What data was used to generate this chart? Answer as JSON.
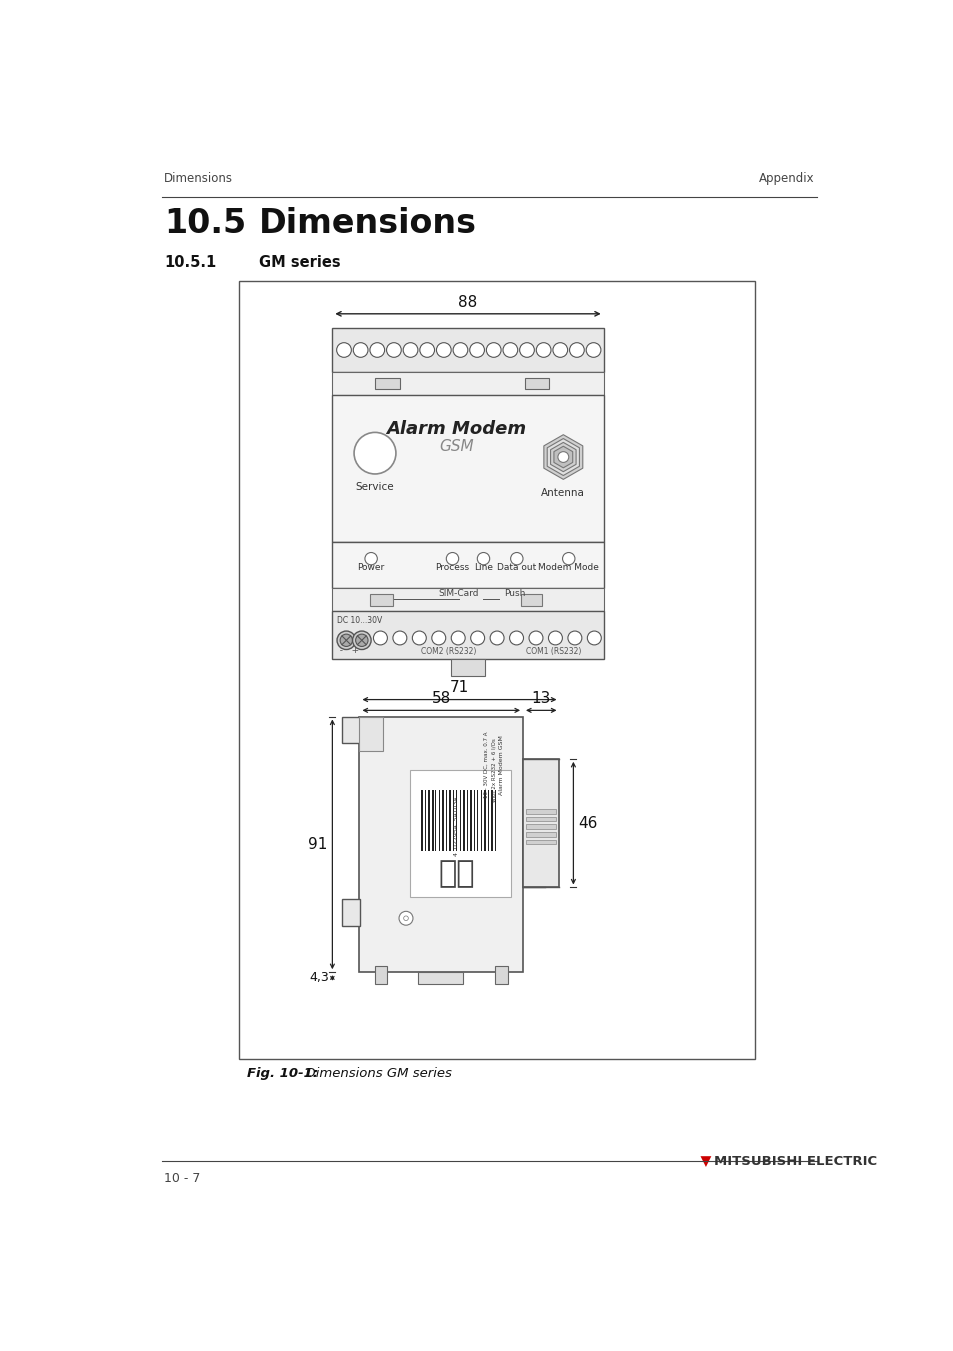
{
  "page_title_section": "10.5",
  "page_title": "Dimensions",
  "page_subtitle_section": "10.5.1",
  "page_subtitle": "GM series",
  "header_left": "Dimensions",
  "header_right": "Appendix",
  "footer_left": "10 - 7",
  "footer_right": "MITSUBISHI ELECTRIC",
  "figure_caption": "Fig. 10-1:",
  "figure_caption_text": "  Dimensions GM series",
  "bg_color": "#ffffff",
  "dim_88": "88",
  "dim_71": "71",
  "dim_58": "58",
  "dim_13": "13",
  "dim_91": "91",
  "dim_46": "46",
  "dim_4_3": "4,3"
}
